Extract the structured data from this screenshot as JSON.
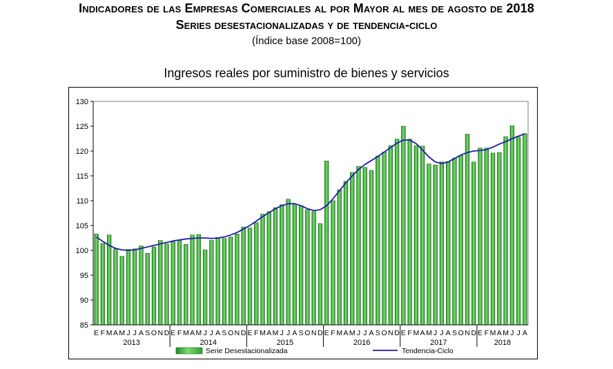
{
  "header": {
    "title_line1": "Indicadores de las Empresas Comerciales al por Mayor al mes de agosto de 2018",
    "title_line2": "Series desestacionalizadas y de tendencia-ciclo",
    "subtitle": "(Índice base 2008=100)"
  },
  "chart_data": {
    "type": "bar",
    "title": "Ingresos reales por suministro de bienes y servicios",
    "xlabel": "",
    "ylabel": "",
    "ylim": [
      85,
      130
    ],
    "yticks": [
      85,
      90,
      95,
      100,
      105,
      110,
      115,
      120,
      125,
      130
    ],
    "grid": false,
    "legend_position": "bottom",
    "month_labels": [
      "E",
      "F",
      "M",
      "A",
      "M",
      "J",
      "J",
      "A",
      "S",
      "O",
      "N",
      "D"
    ],
    "years": [
      "2013",
      "2014",
      "2015",
      "2016",
      "2017",
      "2018"
    ],
    "categories": [
      "E",
      "F",
      "M",
      "A",
      "M",
      "J",
      "J",
      "A",
      "S",
      "O",
      "N",
      "D",
      "E",
      "F",
      "M",
      "A",
      "M",
      "J",
      "J",
      "A",
      "S",
      "O",
      "N",
      "D",
      "E",
      "F",
      "M",
      "A",
      "M",
      "J",
      "J",
      "A",
      "S",
      "O",
      "N",
      "D",
      "E",
      "F",
      "M",
      "A",
      "M",
      "J",
      "J",
      "A",
      "S",
      "O",
      "N",
      "D",
      "E",
      "F",
      "M",
      "A",
      "M",
      "J",
      "J",
      "A",
      "S",
      "O",
      "N",
      "D",
      "E",
      "F",
      "M",
      "A",
      "M",
      "J",
      "J",
      "A"
    ],
    "series": [
      {
        "name": "Serie Desestacionalizada",
        "kind": "bar",
        "color": "#3cb043",
        "values": [
          103.3,
          101.4,
          103.1,
          100.3,
          98.8,
          100.2,
          100.3,
          100.9,
          99.4,
          100.7,
          102.0,
          101.3,
          101.7,
          102.0,
          101.2,
          103.1,
          103.2,
          100.1,
          102.0,
          102.6,
          102.4,
          102.7,
          103.3,
          104.7,
          104.5,
          105.6,
          107.3,
          107.8,
          108.6,
          109.2,
          110.3,
          109.3,
          109.0,
          108.2,
          107.8,
          105.4,
          118.0,
          110.0,
          112.2,
          113.9,
          115.7,
          116.9,
          116.7,
          116.1,
          119.0,
          119.8,
          121.1,
          122.4,
          125.0,
          122.4,
          121.1,
          121.0,
          117.4,
          117.2,
          117.8,
          117.9,
          118.6,
          119.1,
          123.4,
          117.8,
          120.6,
          120.6,
          119.6,
          119.7,
          122.9,
          125.1,
          122.8,
          123.5
        ]
      },
      {
        "name": "Tendencia-Ciclo",
        "kind": "line",
        "color": "#1c1caa",
        "values": [
          102.7,
          101.8,
          101.0,
          100.4,
          100.1,
          100.0,
          100.1,
          100.4,
          100.7,
          101.0,
          101.3,
          101.6,
          101.9,
          102.1,
          102.3,
          102.4,
          102.5,
          102.5,
          102.4,
          102.5,
          102.7,
          103.1,
          103.6,
          104.3,
          105.0,
          105.9,
          106.8,
          107.6,
          108.4,
          109.0,
          109.4,
          109.4,
          109.0,
          108.4,
          108.0,
          108.2,
          109.0,
          110.4,
          112.0,
          113.6,
          115.0,
          116.3,
          117.3,
          118.1,
          118.9,
          119.8,
          120.7,
          121.6,
          122.2,
          122.2,
          121.5,
          120.2,
          118.8,
          117.8,
          117.5,
          117.8,
          118.5,
          119.2,
          119.7,
          120.0,
          120.1,
          120.3,
          120.8,
          121.4,
          121.9,
          122.5,
          123.0,
          123.5
        ]
      }
    ]
  }
}
